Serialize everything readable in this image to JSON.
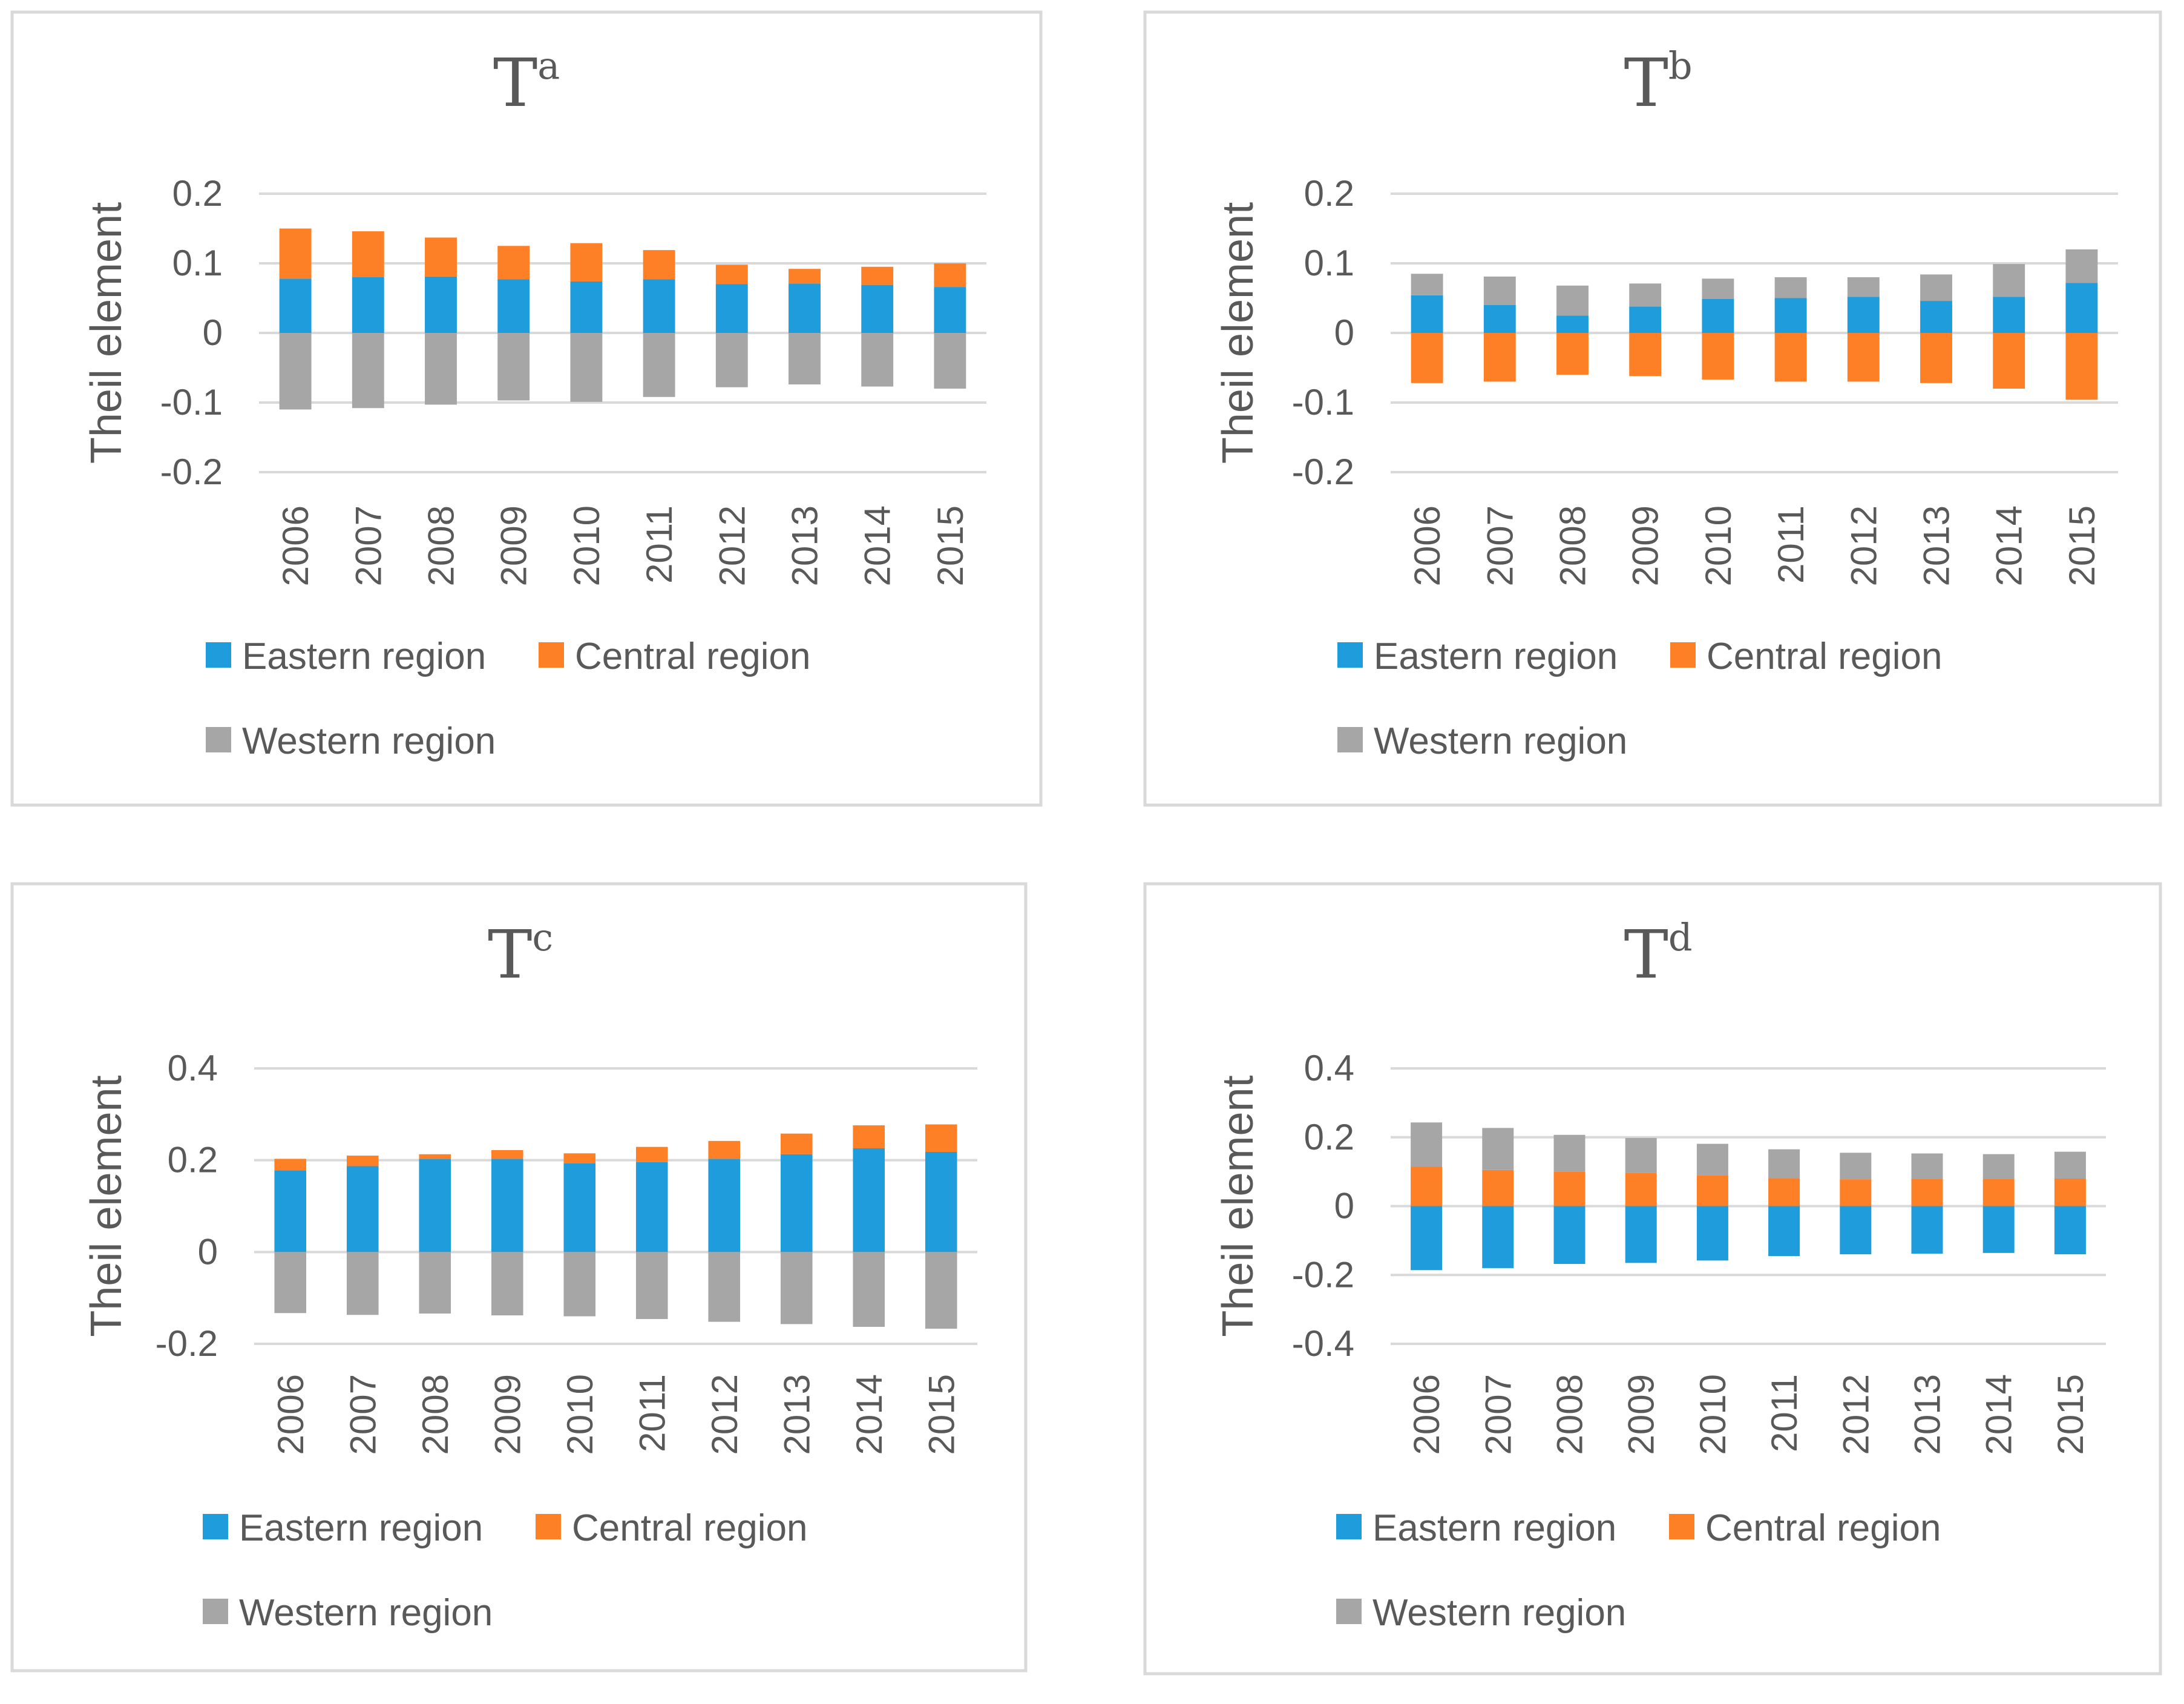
{
  "colors": {
    "eastern": "#1f9cdb",
    "central": "#fd7f26",
    "western": "#a6a6a6"
  },
  "chart_data": [
    {
      "type": "bar",
      "title": "T",
      "title_sup": "a",
      "ylabel": "Theil element",
      "ylim": [
        -0.2,
        0.2
      ],
      "yticks": [
        0.2,
        0.1,
        0,
        -0.1,
        -0.2
      ],
      "ytick_labels": [
        "0.2",
        "0.1",
        "0",
        "-0.1",
        "-0.2"
      ],
      "categories": [
        "2006",
        "2007",
        "2008",
        "2009",
        "2010",
        "2011",
        "2012",
        "2013",
        "2014",
        "2015"
      ],
      "series": [
        {
          "name": "Eastern region",
          "key": "eastern",
          "values": [
            0.078,
            0.08,
            0.081,
            0.077,
            0.074,
            0.077,
            0.07,
            0.071,
            0.069,
            0.066
          ]
        },
        {
          "name": "Central region",
          "key": "central",
          "values": [
            0.072,
            0.066,
            0.056,
            0.048,
            0.055,
            0.042,
            0.028,
            0.021,
            0.026,
            0.034
          ]
        },
        {
          "name": "Western region",
          "key": "western",
          "values": [
            -0.11,
            -0.108,
            -0.103,
            -0.097,
            -0.099,
            -0.092,
            -0.078,
            -0.074,
            -0.077,
            -0.08
          ]
        }
      ],
      "legend": [
        "Eastern region",
        "Central region",
        "Western region"
      ]
    },
    {
      "type": "bar",
      "title": "T",
      "title_sup": "b",
      "ylabel": "Theil element",
      "ylim": [
        -0.2,
        0.2
      ],
      "yticks": [
        0.2,
        0.1,
        0,
        -0.1,
        -0.2
      ],
      "ytick_labels": [
        "0.2",
        "0.1",
        "0",
        "-0.1",
        "-0.2"
      ],
      "categories": [
        "2006",
        "2007",
        "2008",
        "2009",
        "2010",
        "2011",
        "2012",
        "2013",
        "2014",
        "2015"
      ],
      "series": [
        {
          "name": "Eastern region",
          "key": "eastern",
          "values": [
            0.054,
            0.04,
            0.025,
            0.038,
            0.049,
            0.05,
            0.052,
            0.046,
            0.052,
            0.072
          ]
        },
        {
          "name": "Central region",
          "key": "central",
          "values": [
            -0.072,
            -0.07,
            -0.06,
            -0.062,
            -0.067,
            -0.07,
            -0.07,
            -0.072,
            -0.08,
            -0.096
          ]
        },
        {
          "name": "Western region",
          "key": "western",
          "values": [
            0.031,
            0.041,
            0.043,
            0.033,
            0.029,
            0.03,
            0.028,
            0.038,
            0.047,
            0.048
          ]
        }
      ],
      "legend": [
        "Eastern region",
        "Central region",
        "Western region"
      ]
    },
    {
      "type": "bar",
      "title": "T",
      "title_sup": "c",
      "ylabel": "Theil element",
      "ylim": [
        -0.2,
        0.4
      ],
      "yticks": [
        0.4,
        0.2,
        0,
        -0.2
      ],
      "ytick_labels": [
        "0.4",
        "0.2",
        "0",
        "-0.2"
      ],
      "categories": [
        "2006",
        "2007",
        "2008",
        "2009",
        "2010",
        "2011",
        "2012",
        "2013",
        "2014",
        "2015"
      ],
      "series": [
        {
          "name": "Eastern region",
          "key": "eastern",
          "values": [
            0.178,
            0.187,
            0.203,
            0.203,
            0.193,
            0.196,
            0.203,
            0.213,
            0.226,
            0.218
          ]
        },
        {
          "name": "Central region",
          "key": "central",
          "values": [
            0.025,
            0.023,
            0.01,
            0.019,
            0.022,
            0.033,
            0.039,
            0.045,
            0.05,
            0.06
          ]
        },
        {
          "name": "Western region",
          "key": "western",
          "values": [
            -0.133,
            -0.137,
            -0.134,
            -0.138,
            -0.14,
            -0.146,
            -0.152,
            -0.157,
            -0.163,
            -0.167
          ]
        }
      ],
      "legend": [
        "Eastern region",
        "Central region",
        "Western region"
      ]
    },
    {
      "type": "bar",
      "title": "T",
      "title_sup": "d",
      "ylabel": "Theil element",
      "ylim": [
        -0.4,
        0.4
      ],
      "yticks": [
        0.4,
        0.2,
        0,
        -0.2,
        -0.4
      ],
      "ytick_labels": [
        "0.4",
        "0.2",
        "0",
        "-0.2",
        "-0.4"
      ],
      "categories": [
        "2006",
        "2007",
        "2008",
        "2009",
        "2010",
        "2011",
        "2012",
        "2013",
        "2014",
        "2015"
      ],
      "series": [
        {
          "name": "Eastern region",
          "key": "eastern",
          "values": [
            -0.186,
            -0.18,
            -0.168,
            -0.165,
            -0.158,
            -0.145,
            -0.14,
            -0.138,
            -0.136,
            -0.14
          ]
        },
        {
          "name": "Central region",
          "key": "central",
          "values": [
            0.115,
            0.105,
            0.1,
            0.096,
            0.09,
            0.081,
            0.078,
            0.079,
            0.079,
            0.08
          ]
        },
        {
          "name": "Western region",
          "key": "western",
          "values": [
            0.128,
            0.122,
            0.107,
            0.102,
            0.091,
            0.084,
            0.077,
            0.074,
            0.072,
            0.078
          ]
        }
      ],
      "legend": [
        "Eastern region",
        "Central region",
        "Western region"
      ]
    }
  ]
}
